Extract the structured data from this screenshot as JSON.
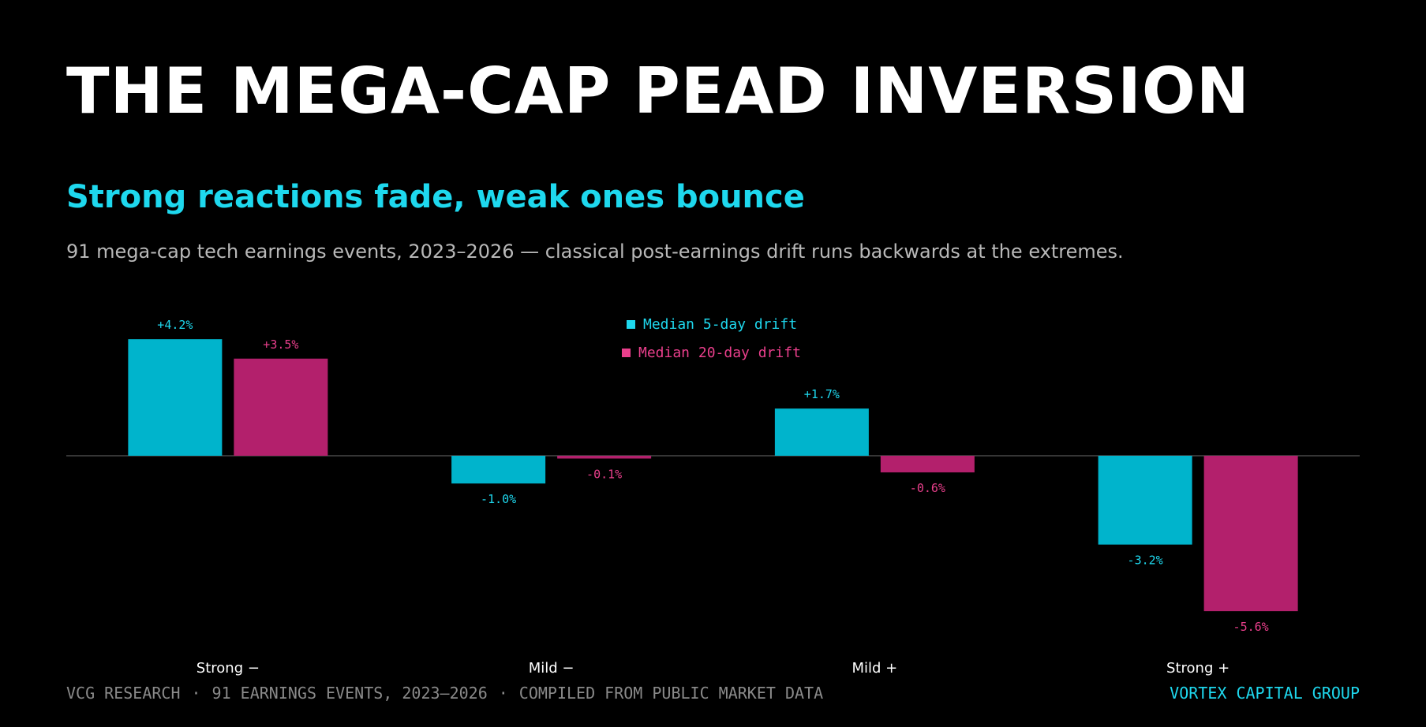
{
  "header": {
    "title": "THE MEGA-CAP PEAD INVERSION",
    "subtitle": "Strong reactions fade, weak ones bounce",
    "description": "91 mega-cap tech earnings events, 2023–2026 — classical post-earnings drift runs backwards at the extremes."
  },
  "chart_data": {
    "type": "bar",
    "categories": [
      "Strong −",
      "Mild −",
      "Mild +",
      "Strong +"
    ],
    "series": [
      {
        "name": "Median 5-day drift",
        "values": [
          4.2,
          -1.0,
          1.7,
          -3.2
        ],
        "labels": [
          "+4.2%",
          "-1.0%",
          "+1.7%",
          "-3.2%"
        ],
        "color": "#00b4cc",
        "label_color": "#1ed8ee"
      },
      {
        "name": "Median 20-day drift",
        "values": [
          3.5,
          -0.1,
          -0.6,
          -5.6
        ],
        "labels": [
          "+3.5%",
          "-0.1%",
          "-0.6%",
          "-5.6%"
        ],
        "color": "#b3206c",
        "label_color": "#ea3f8c"
      }
    ],
    "title": "",
    "xlabel": "",
    "ylabel": "",
    "ylim": [
      -5.9,
      4.7
    ],
    "grid": false,
    "legend": "top-center"
  },
  "footer": {
    "source_parts": [
      "VCG RESEARCH",
      "91 EARNINGS EVENTS, 2023–2026",
      "COMPILED FROM PUBLIC MARKET DATA"
    ],
    "separator": "·",
    "brand": "VORTEX CAPITAL GROUP"
  },
  "colors": {
    "background": "#000000",
    "accent": "#1ed8ee",
    "axis": "#555555"
  }
}
